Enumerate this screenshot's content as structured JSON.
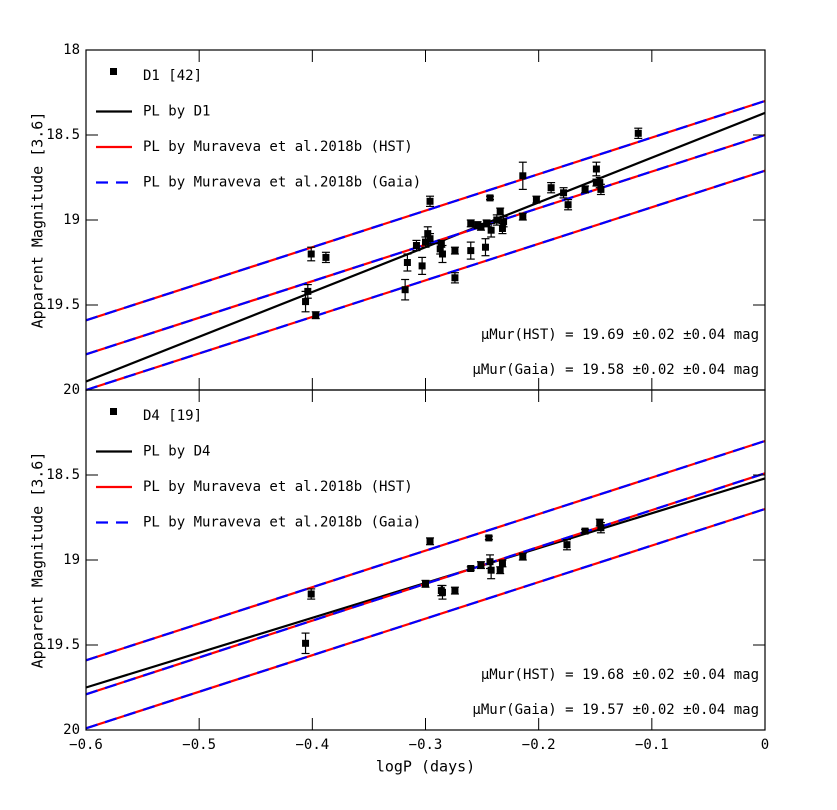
{
  "chart_data": [
    {
      "type": "scatter",
      "ylabel": "Apparent Magnitude [3.6]",
      "y_inverted": true,
      "xlim": [
        -0.6,
        0
      ],
      "ylim": [
        18,
        20
      ],
      "xticks": [
        -0.6,
        -0.5,
        -0.4,
        -0.3,
        -0.2,
        -0.1,
        0
      ],
      "xtick_labels": false,
      "yticks": [
        18,
        18.5,
        19,
        19.5,
        20
      ],
      "series": [
        {
          "name": "D1 [42]",
          "color": "#000000",
          "x": [
            -0.401,
            -0.388,
            -0.404,
            -0.406,
            -0.397,
            -0.318,
            -0.316,
            -0.308,
            -0.303,
            -0.3,
            -0.298,
            -0.296,
            -0.296,
            -0.287,
            -0.285,
            -0.286,
            -0.274,
            -0.274,
            -0.26,
            -0.26,
            -0.254,
            -0.251,
            -0.247,
            -0.246,
            -0.243,
            -0.242,
            -0.237,
            -0.234,
            -0.232,
            -0.231,
            -0.214,
            -0.214,
            -0.202,
            -0.189,
            -0.178,
            -0.174,
            -0.159,
            -0.149,
            -0.146,
            -0.145,
            -0.112,
            -0.149
          ],
          "values": [
            19.2,
            19.22,
            19.42,
            19.48,
            19.56,
            19.41,
            19.25,
            19.15,
            19.27,
            19.13,
            19.08,
            19.11,
            18.89,
            19.17,
            19.2,
            19.14,
            19.18,
            19.34,
            19.18,
            19.02,
            19.03,
            19.04,
            19.16,
            19.02,
            18.87,
            19.06,
            19.0,
            18.95,
            19.05,
            19.01,
            18.74,
            18.98,
            18.88,
            18.81,
            18.84,
            18.91,
            18.82,
            18.7,
            18.78,
            18.82,
            18.49,
            18.78
          ],
          "errors": [
            0.04,
            0.03,
            0.04,
            0.06,
            0.02,
            0.06,
            0.05,
            0.03,
            0.05,
            0.03,
            0.04,
            0.03,
            0.03,
            0.03,
            0.05,
            0.02,
            0.02,
            0.03,
            0.05,
            0.02,
            0.02,
            0.02,
            0.05,
            0.02,
            0.01,
            0.04,
            0.03,
            0.02,
            0.03,
            0.03,
            0.08,
            0.02,
            0.02,
            0.03,
            0.03,
            0.03,
            0.02,
            0.04,
            0.03,
            0.03,
            0.03,
            0.02
          ]
        }
      ],
      "lines": [
        {
          "color": "#ff0000",
          "dash_color": "#0000ff",
          "x": [
            -0.6,
            0
          ],
          "values": [
            19.59,
            18.3
          ]
        },
        {
          "color": "#ff0000",
          "dash_color": "#0000ff",
          "x": [
            -0.6,
            0
          ],
          "values": [
            20.0,
            18.71
          ]
        },
        {
          "name": "PL by D1",
          "color": "#000000",
          "x": [
            -0.6,
            0
          ],
          "values": [
            19.95,
            18.37
          ]
        },
        {
          "name": "PL by Muraveva et al.2018b (HST)",
          "color": "#ff0000",
          "x": [
            -0.6,
            0
          ],
          "values": [
            19.79,
            18.5
          ]
        },
        {
          "name": "PL by Muraveva et al.2018b (Gaia)",
          "color": "#0000ff",
          "dashed": true,
          "x": [
            -0.6,
            0
          ],
          "values": [
            19.79,
            18.5
          ]
        }
      ],
      "annotations": [
        "μMur(HST) = 19.69 ±0.02 ±0.04 mag",
        "μMur(Gaia) = 19.58 ±0.02 ±0.04 mag"
      ]
    },
    {
      "type": "scatter",
      "ylabel": "Apparent Magnitude [3.6]",
      "xlabel": "logP (days)",
      "y_inverted": true,
      "xlim": [
        -0.6,
        0
      ],
      "ylim": [
        18,
        20
      ],
      "xticks": [
        {
          "value": -0.6,
          "label": "−0.6"
        },
        {
          "value": -0.5,
          "label": "−0.5"
        },
        {
          "value": -0.4,
          "label": "−0.4"
        },
        {
          "value": -0.3,
          "label": "−0.3"
        },
        {
          "value": -0.2,
          "label": "−0.2"
        },
        {
          "value": -0.1,
          "label": "−0.1"
        },
        0
      ],
      "xtick_labels": true,
      "yticks": [
        18.5,
        19,
        19.5,
        20
      ],
      "series": [
        {
          "name": "D4 [19]",
          "color": "#000000",
          "x": [
            -0.401,
            -0.406,
            -0.3,
            -0.296,
            -0.286,
            -0.285,
            -0.274,
            -0.26,
            -0.251,
            -0.244,
            -0.243,
            -0.242,
            -0.234,
            -0.232,
            -0.214,
            -0.175,
            -0.159,
            -0.146,
            -0.145
          ],
          "values": [
            19.2,
            19.49,
            19.14,
            18.89,
            19.18,
            19.19,
            19.18,
            19.05,
            19.03,
            18.87,
            19.01,
            19.06,
            19.06,
            19.02,
            18.98,
            18.91,
            18.83,
            18.78,
            18.81
          ],
          "errors": [
            0.03,
            0.06,
            0.02,
            0.02,
            0.03,
            0.04,
            0.02,
            0.01,
            0.02,
            0.01,
            0.04,
            0.05,
            0.02,
            0.02,
            0.02,
            0.03,
            0.01,
            0.02,
            0.03
          ]
        }
      ],
      "lines": [
        {
          "color": "#ff0000",
          "dash_color": "#0000ff",
          "x": [
            -0.6,
            0
          ],
          "values": [
            19.59,
            18.3
          ]
        },
        {
          "color": "#ff0000",
          "dash_color": "#0000ff",
          "x": [
            -0.6,
            0
          ],
          "values": [
            19.99,
            18.7
          ]
        },
        {
          "name": "PL by D4",
          "color": "#000000",
          "x": [
            -0.6,
            0
          ],
          "values": [
            19.75,
            18.52
          ]
        },
        {
          "name": "PL by Muraveva et al.2018b (HST)",
          "color": "#ff0000",
          "x": [
            -0.6,
            0
          ],
          "values": [
            19.79,
            18.49
          ]
        },
        {
          "name": "PL by Muraveva et al.2018b (Gaia)",
          "color": "#0000ff",
          "dashed": true,
          "x": [
            -0.6,
            0
          ],
          "values": [
            19.79,
            18.49
          ]
        }
      ],
      "annotations": [
        "μMur(HST) = 19.68 ±0.02 ±0.04 mag",
        "μMur(Gaia) = 19.57 ±0.02 ±0.04 mag"
      ]
    }
  ]
}
